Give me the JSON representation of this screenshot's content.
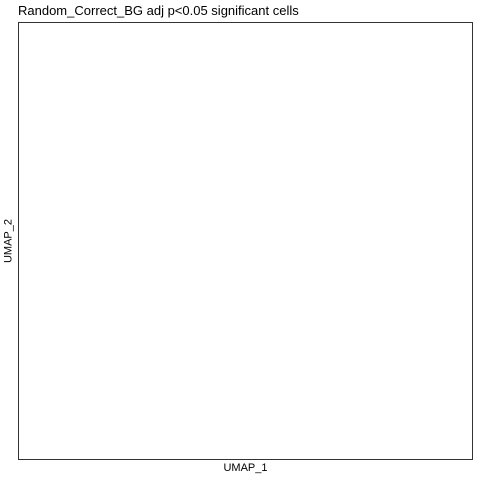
{
  "chart_data": {
    "type": "scatter",
    "title": "Random_Correct_BG adj p<0.05 significant cells",
    "xlabel": "UMAP_1",
    "ylabel": "UMAP_2",
    "series": [],
    "grid": false,
    "legend": "none"
  },
  "colors": {
    "background": "#ffffff",
    "panel_border": "#333333",
    "text": "#000000"
  }
}
